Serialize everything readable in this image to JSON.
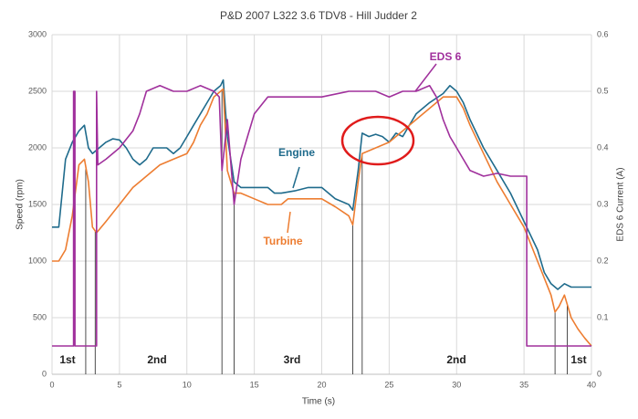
{
  "chart_data": {
    "type": "line",
    "title": "P&D  2007 L322 3.6 TDV8  -  Hill Judder 2",
    "x_label": "Time (s)",
    "y_label": "Speed (rpm)",
    "y2_label": "EDS 6 Current (A)",
    "xlim": [
      0,
      40
    ],
    "xticks": [
      0,
      5,
      10,
      15,
      20,
      25,
      30,
      35,
      40
    ],
    "ylim": [
      0,
      3000
    ],
    "yticks": [
      0,
      500,
      1000,
      1500,
      2000,
      2500,
      3000
    ],
    "y2lim": [
      0,
      0.6
    ],
    "y2ticks": [
      0,
      0.1,
      0.2,
      0.3,
      0.4,
      0.5,
      0.6
    ],
    "grid": true,
    "series": [
      {
        "name": "Engine",
        "color": "#1f6b8c",
        "x": [
          0,
          0.5,
          1,
          1.5,
          2,
          2.4,
          2.7,
          3,
          3.5,
          4,
          4.5,
          5,
          5.5,
          6,
          6.5,
          7,
          7.5,
          8,
          8.5,
          9,
          9.5,
          10,
          10.5,
          11,
          11.5,
          12,
          12.5,
          12.7,
          13,
          13.5,
          14,
          15,
          16,
          16.5,
          17,
          18,
          19,
          20,
          21,
          22,
          22.3,
          22.7,
          23,
          23.5,
          24,
          24.5,
          25,
          25.5,
          26,
          26.5,
          27,
          28,
          29,
          29.5,
          30,
          30.5,
          31,
          32,
          33,
          34,
          35,
          36,
          36.5,
          37,
          37.5,
          38,
          38.5,
          39,
          40
        ],
        "values": [
          1300,
          1300,
          1900,
          2050,
          2150,
          2200,
          2000,
          1950,
          2000,
          2050,
          2080,
          2070,
          2000,
          1900,
          1850,
          1900,
          2000,
          2000,
          2000,
          1950,
          2000,
          2100,
          2200,
          2300,
          2400,
          2500,
          2550,
          2600,
          2100,
          1700,
          1650,
          1650,
          1650,
          1600,
          1600,
          1620,
          1650,
          1650,
          1550,
          1500,
          1450,
          1800,
          2130,
          2100,
          2120,
          2100,
          2050,
          2130,
          2100,
          2200,
          2300,
          2400,
          2480,
          2550,
          2500,
          2400,
          2250,
          2000,
          1800,
          1600,
          1350,
          1100,
          900,
          800,
          750,
          800,
          770,
          770,
          770
        ]
      },
      {
        "name": "Turbine",
        "color": "#ed7d31",
        "x": [
          0,
          0.5,
          1,
          1.5,
          2,
          2.4,
          2.7,
          3,
          3.3,
          4,
          5,
          6,
          7,
          8,
          9,
          10,
          10.5,
          11,
          11.5,
          12,
          12.5,
          12.7,
          13,
          13.5,
          14,
          15,
          16,
          17,
          17.5,
          18,
          19,
          20,
          21,
          22,
          22.3,
          22.7,
          23,
          24,
          25,
          26,
          27,
          28,
          29,
          30,
          30.5,
          31,
          32,
          33,
          34,
          35,
          36,
          37,
          37.3,
          37.6,
          38,
          38.5,
          39,
          39.5,
          40
        ],
        "values": [
          1000,
          1000,
          1100,
          1400,
          1850,
          1900,
          1700,
          1300,
          1250,
          1350,
          1500,
          1650,
          1750,
          1850,
          1900,
          1950,
          2050,
          2200,
          2300,
          2450,
          2500,
          2520,
          1800,
          1600,
          1600,
          1550,
          1500,
          1500,
          1550,
          1550,
          1550,
          1550,
          1480,
          1400,
          1320,
          1700,
          1950,
          2000,
          2050,
          2150,
          2250,
          2350,
          2450,
          2450,
          2350,
          2200,
          1950,
          1700,
          1500,
          1300,
          1000,
          700,
          550,
          600,
          700,
          500,
          400,
          320,
          250
        ]
      },
      {
        "name": "EDS 6",
        "color": "#a0309c",
        "axis": "y2",
        "x": [
          0,
          1.6,
          1.6,
          1.7,
          1.7,
          3.3,
          3.3,
          3.4,
          4,
          5,
          6,
          6.5,
          7,
          8,
          9,
          10,
          11,
          12,
          12.4,
          12.6,
          13,
          13.5,
          14,
          14.5,
          15,
          16,
          18,
          20,
          22,
          23,
          24,
          25,
          26,
          27,
          28,
          28.5,
          29,
          29.5,
          30,
          30.5,
          31,
          32,
          33,
          34,
          35.2,
          35.2,
          40
        ],
        "values": [
          0.05,
          0.05,
          0.5,
          0.5,
          0.05,
          0.05,
          0.5,
          0.37,
          0.38,
          0.4,
          0.43,
          0.46,
          0.5,
          0.51,
          0.5,
          0.5,
          0.51,
          0.5,
          0.49,
          0.36,
          0.45,
          0.3,
          0.38,
          0.42,
          0.46,
          0.49,
          0.49,
          0.49,
          0.5,
          0.5,
          0.5,
          0.49,
          0.5,
          0.5,
          0.51,
          0.49,
          0.45,
          0.42,
          0.4,
          0.38,
          0.36,
          0.35,
          0.355,
          0.35,
          0.35,
          0.05,
          0.05
        ]
      }
    ],
    "shift_times": [
      2.5,
      3.2,
      12.6,
      13.5,
      22.3,
      23.0,
      37.3,
      38.2
    ],
    "gears": [
      "1st",
      "2nd",
      "3rd",
      "2nd",
      "1st"
    ]
  }
}
